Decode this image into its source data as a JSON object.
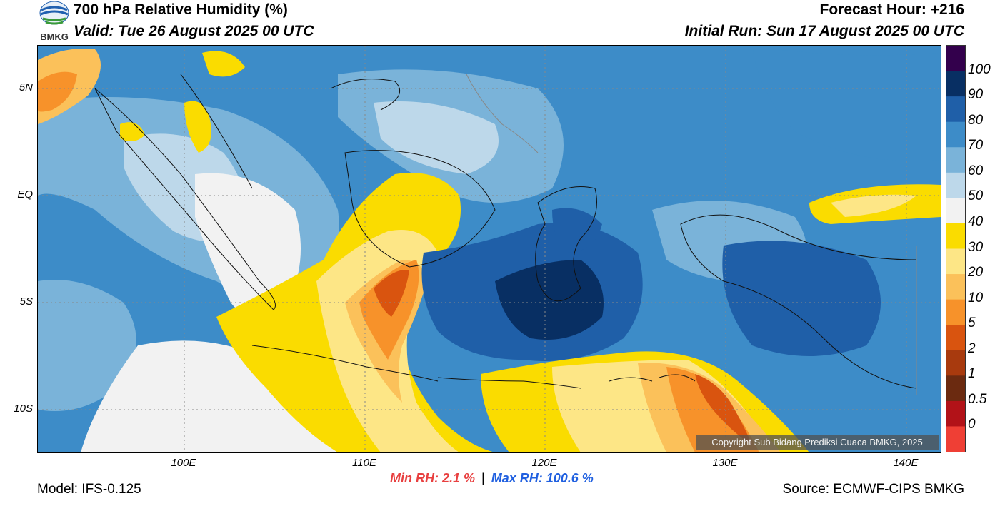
{
  "header": {
    "title": "700 hPa Relative Humidity (%)",
    "valid": "Valid: Tue 26 August 2025 00 UTC",
    "forecast_hour": "Forecast Hour: +216",
    "initial_run": "Initial Run: Sun 17 August 2025 00 UTC"
  },
  "logo": {
    "text": "BMKG",
    "icon": "bmkg-logo-icon"
  },
  "map": {
    "lat_labels": [
      "5N",
      "EQ",
      "5S",
      "10S"
    ],
    "lon_labels": [
      "100E",
      "110E",
      "120E",
      "130E",
      "140E"
    ],
    "copyright": "Copyright Sub Bidang Prediksi Cuaca BMKG, 2025"
  },
  "colorbar": {
    "labels": [
      "100",
      "90",
      "80",
      "70",
      "60",
      "50",
      "40",
      "30",
      "20",
      "10",
      "5",
      "2",
      "1",
      "0.5",
      "0"
    ],
    "colors": [
      "#33004c",
      "#082f63",
      "#1f5fa8",
      "#3d8cc8",
      "#7ab3d9",
      "#bdd8ea",
      "#f2f2f2",
      "#fadc00",
      "#fde686",
      "#fbc15a",
      "#f7922a",
      "#d9540f",
      "#a83a0e",
      "#6b2a10",
      "#b21218",
      "#ef3f35"
    ]
  },
  "stats": {
    "min_label": "Min RH:   2.1 %",
    "separator": "|",
    "max_label": "Max RH: 100.6 %"
  },
  "footer": {
    "model": "Model: IFS-0.125",
    "source": "Source: ECMWF-CIPS BMKG"
  }
}
